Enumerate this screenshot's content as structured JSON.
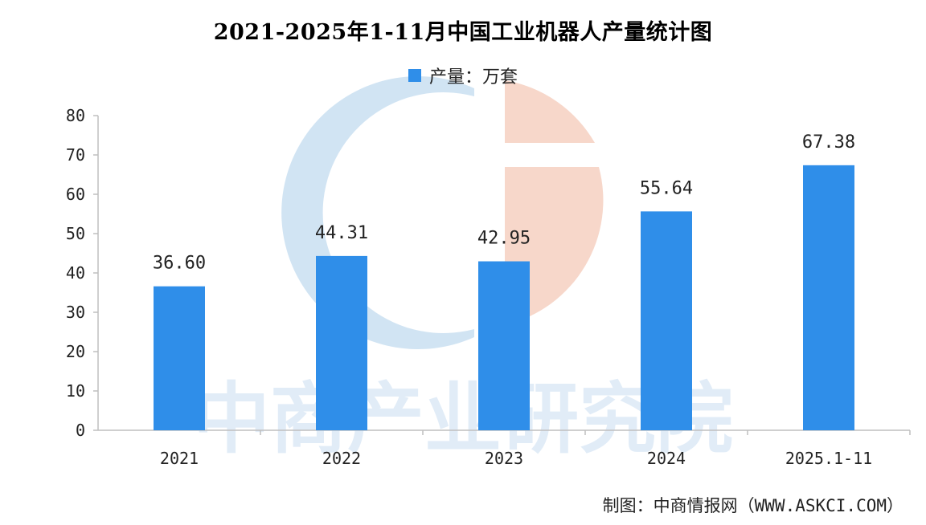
{
  "chart": {
    "title": "2021-2025年1-11月中国工业机器人产量统计图",
    "legend_label": "产量：万套",
    "credit": "制图：中商情报网（WWW.ASKCI.COM）",
    "watermark_text": "中商产业研究院"
  },
  "colors": {
    "bar": "#2f8ee9",
    "axis": "#bfbfbf",
    "watermark_blue": "#c9dff1",
    "watermark_orange": "#f6d3c4",
    "watermark_text": "#d7e6f5"
  },
  "chart_data": {
    "type": "bar",
    "categories": [
      "2021",
      "2022",
      "2023",
      "2024",
      "2025.1-11"
    ],
    "series": [
      {
        "name": "产量：万套",
        "values": [
          36.6,
          44.31,
          42.95,
          55.64,
          67.38
        ],
        "labels": [
          "36.60",
          "44.31",
          "42.95",
          "55.64",
          "67.38"
        ]
      }
    ],
    "title": "2021-2025年1-11月中国工业机器人产量统计图",
    "xlabel": "",
    "ylabel": "",
    "ylim": [
      0,
      80
    ],
    "yticks": [
      0,
      10,
      20,
      30,
      40,
      50,
      60,
      70,
      80
    ],
    "grid": false,
    "legend_position": "top-center"
  }
}
